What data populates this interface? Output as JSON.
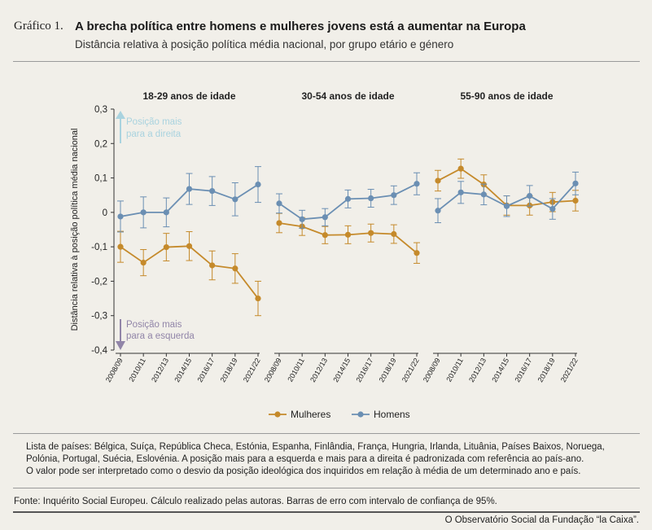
{
  "header": {
    "figure_number": "Gráfico 1.",
    "title": "A brecha política entre homens e mulheres jovens está a aumentar na Europa",
    "subtitle": "Distância relativa à posição política média nacional, por grupo etário e género"
  },
  "chart_data": {
    "type": "line",
    "ylabel": "Distância relativa à posição política média nacional",
    "ylim": [
      -0.4,
      0.3
    ],
    "yticks": [
      0.3,
      0.2,
      0.1,
      0,
      -0.1,
      -0.2,
      -0.3,
      -0.4
    ],
    "ytick_labels": [
      "0,3",
      "0,2",
      "0,1",
      "0",
      "-0,1",
      "-0,2",
      "-0,3",
      "-0,4"
    ],
    "categories": [
      "2008/09",
      "2010/11",
      "2012/13",
      "2014/15",
      "2016/17",
      "2018/19",
      "2021/22"
    ],
    "annotation_up": [
      "Posição mais",
      "para a direita"
    ],
    "annotation_down": [
      "Posição mais",
      "para a esquerda"
    ],
    "legend_position": "bottom-center",
    "colors": {
      "mulheres": "#c58a2b",
      "homens": "#6b8fb3",
      "arrow_up": "#a9d3df",
      "arrow_down": "#9185a8"
    },
    "panels": [
      {
        "title": "18-29 anos de idade",
        "series": [
          {
            "name": "Mulheres",
            "values": [
              -0.1,
              -0.146,
              -0.101,
              -0.098,
              -0.154,
              -0.163,
              -0.25
            ],
            "err": [
              0.045,
              0.038,
              0.04,
              0.042,
              0.042,
              0.043,
              0.05
            ]
          },
          {
            "name": "Homens",
            "values": [
              -0.012,
              0.0,
              0.0,
              0.068,
              0.062,
              0.038,
              0.081
            ],
            "err": [
              0.045,
              0.045,
              0.042,
              0.045,
              0.042,
              0.048,
              0.052
            ]
          }
        ]
      },
      {
        "title": "30-54 anos de idade",
        "series": [
          {
            "name": "Mulheres",
            "values": [
              -0.031,
              -0.041,
              -0.066,
              -0.065,
              -0.06,
              -0.063,
              -0.118
            ],
            "err": [
              0.028,
              0.026,
              0.025,
              0.026,
              0.026,
              0.027,
              0.03
            ]
          },
          {
            "name": "Homens",
            "values": [
              0.026,
              -0.02,
              -0.014,
              0.039,
              0.041,
              0.05,
              0.083
            ],
            "err": [
              0.028,
              0.026,
              0.025,
              0.026,
              0.026,
              0.027,
              0.032
            ]
          }
        ]
      },
      {
        "title": "55-90 anos de idade",
        "series": [
          {
            "name": "Mulheres",
            "values": [
              0.092,
              0.127,
              0.081,
              0.02,
              0.02,
              0.03,
              0.034
            ],
            "err": [
              0.03,
              0.028,
              0.028,
              0.028,
              0.028,
              0.028,
              0.03
            ]
          },
          {
            "name": "Homens",
            "values": [
              0.005,
              0.058,
              0.052,
              0.018,
              0.048,
              0.01,
              0.084
            ],
            "err": [
              0.035,
              0.032,
              0.03,
              0.03,
              0.03,
              0.03,
              0.033
            ]
          }
        ]
      }
    ]
  },
  "notes": [
    "Lista de países: Bélgica, Suíça, República Checa, Estónia, Espanha, Finlândia, França, Hungria, Irlanda, Lituânia, Países Baixos, Noruega,",
    "Polónia, Portugal, Suécia, Eslovénia. A posição mais para a esquerda e mais para a direita é padronizada com referência ao país-ano.",
    "O valor pode ser interpretado como o desvio da posição ideológica dos inquiridos em relação à média de um determinado ano e país."
  ],
  "source": "Fonte: Inquérito Social Europeu. Cálculo realizado pelas autoras. Barras de erro com intervalo de confiança de 95%.",
  "credit": "O Observatório Social da Fundação “la Caixa”."
}
